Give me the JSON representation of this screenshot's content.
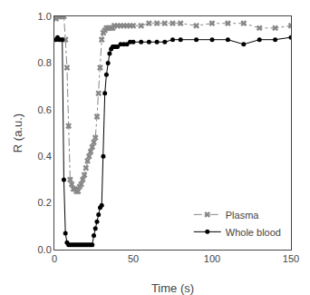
{
  "chart_data": {
    "type": "line",
    "xlabel": "Time (s)",
    "ylabel": "R (a.u.)",
    "xlim": [
      0,
      150
    ],
    "ylim": [
      0,
      1.0
    ],
    "xticks": [
      0,
      50,
      100,
      150
    ],
    "yticks": [
      {
        "value": 0,
        "label": "0.0"
      },
      0.2,
      0.4,
      0.6,
      0.8,
      {
        "value": 1.0,
        "label": "1.0"
      }
    ],
    "grid": false,
    "legend": "lower right",
    "series": [
      {
        "name": "Plasma",
        "color": "#888888",
        "marker": "x",
        "line_style": "dashdot",
        "x": [
          1,
          2,
          3,
          4,
          5,
          6,
          7,
          8,
          9,
          10,
          11,
          12,
          13,
          14,
          15,
          16,
          17,
          18,
          19,
          20,
          21,
          22,
          23,
          24,
          25,
          26,
          27,
          28,
          29,
          30,
          31,
          32,
          33,
          34,
          35,
          36,
          37,
          38,
          40,
          42,
          44,
          46,
          48,
          50,
          55,
          60,
          65,
          70,
          75,
          80,
          90,
          100,
          110,
          120,
          130,
          140,
          150
        ],
        "values": [
          0.99,
          1.0,
          1.0,
          1.0,
          1.0,
          1.0,
          0.9,
          0.78,
          0.53,
          0.3,
          0.28,
          0.26,
          0.26,
          0.25,
          0.25,
          0.27,
          0.28,
          0.3,
          0.32,
          0.35,
          0.38,
          0.4,
          0.42,
          0.44,
          0.46,
          0.48,
          0.57,
          0.67,
          0.78,
          0.9,
          0.93,
          0.94,
          0.95,
          0.95,
          0.95,
          0.95,
          0.95,
          0.96,
          0.96,
          0.96,
          0.96,
          0.96,
          0.96,
          0.96,
          0.96,
          0.97,
          0.97,
          0.97,
          0.97,
          0.97,
          0.96,
          0.97,
          0.97,
          0.97,
          0.95,
          0.95,
          0.96
        ]
      },
      {
        "name": "Whole blood",
        "color": "#000000",
        "marker": "circle",
        "line_style": "solid",
        "x": [
          1,
          2,
          3,
          4,
          5,
          6,
          7,
          8,
          9,
          10,
          11,
          12,
          13,
          14,
          15,
          16,
          17,
          18,
          19,
          20,
          21,
          22,
          23,
          24,
          25,
          26,
          27,
          28,
          29,
          30,
          31,
          32,
          33,
          34,
          35,
          36,
          37,
          38,
          39,
          40,
          42,
          44,
          46,
          48,
          50,
          55,
          60,
          65,
          70,
          75,
          80,
          90,
          100,
          110,
          120,
          130,
          140,
          150
        ],
        "values": [
          0.9,
          0.91,
          0.9,
          0.9,
          0.9,
          0.3,
          0.07,
          0.03,
          0.02,
          0.02,
          0.02,
          0.02,
          0.02,
          0.02,
          0.02,
          0.02,
          0.02,
          0.02,
          0.02,
          0.02,
          0.02,
          0.02,
          0.02,
          0.02,
          0.06,
          0.09,
          0.12,
          0.15,
          0.18,
          0.19,
          0.4,
          0.67,
          0.75,
          0.8,
          0.84,
          0.86,
          0.87,
          0.87,
          0.87,
          0.87,
          0.88,
          0.88,
          0.88,
          0.89,
          0.89,
          0.89,
          0.89,
          0.89,
          0.89,
          0.9,
          0.9,
          0.9,
          0.9,
          0.9,
          0.88,
          0.9,
          0.9,
          0.91
        ]
      }
    ]
  }
}
